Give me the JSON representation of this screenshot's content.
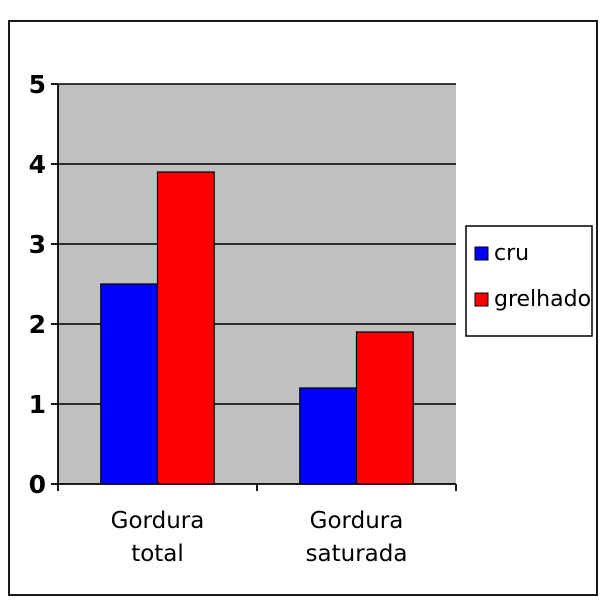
{
  "colors": {
    "plot_background": "#c0c0c0",
    "gridline": "#000000",
    "cru": "#0000ff",
    "grelhado": "#ff0000",
    "legend_background": "#ffffff"
  },
  "chart_data": {
    "type": "bar",
    "title": "",
    "xlabel": "",
    "ylabel": "",
    "categories": [
      "Gordura total",
      "Gordura saturada"
    ],
    "category_lines": [
      [
        "Gordura",
        "total"
      ],
      [
        "Gordura",
        "saturada"
      ]
    ],
    "series": [
      {
        "name": "cru",
        "color": "#0000ff",
        "values": [
          2.5,
          1.2
        ]
      },
      {
        "name": "grelhado",
        "color": "#ff0000",
        "values": [
          3.9,
          1.9
        ]
      }
    ],
    "ylim": [
      0,
      5
    ],
    "yticks": [
      "0",
      "1",
      "2",
      "3",
      "4",
      "5"
    ],
    "grid": true,
    "legend_position": "right"
  }
}
